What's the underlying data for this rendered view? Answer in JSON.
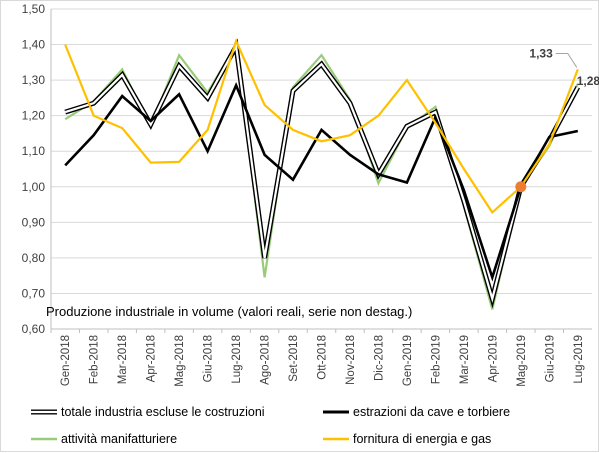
{
  "chart_data": {
    "type": "line",
    "title": "Produzione  industriale in volume (valori reali, serie non destag.)",
    "categories": [
      "Gen-2018",
      "Feb-2018",
      "Mar-2018",
      "Apr-2018",
      "Mag-2018",
      "Giu-2018",
      "Lug-2018",
      "Ago-2018",
      "Set-2018",
      "Ott-2018",
      "Nov-2018",
      "Dic-2018",
      "Gen-2019",
      "Feb-2019",
      "Mar-2019",
      "Apr-2019",
      "Mag-2019",
      "Giu-2019",
      "Lug-2019"
    ],
    "ylim": [
      0.6,
      1.5
    ],
    "yticks": [
      "0,60",
      "0,70",
      "0,80",
      "0,90",
      "1,00",
      "1,10",
      "1,20",
      "1,30",
      "1,40",
      "1,50"
    ],
    "grid": true,
    "legend_position": "bottom",
    "series": [
      {
        "name": "totale industria escluse le costruzioni",
        "color": "#000000",
        "style": "hollow",
        "values": [
          1.21,
          1.235,
          1.315,
          1.175,
          1.34,
          1.25,
          1.395,
          0.8,
          1.27,
          1.345,
          1.235,
          1.035,
          1.17,
          1.21,
          0.96,
          0.685,
          1.0,
          1.13,
          1.28
        ]
      },
      {
        "name": "estrazioni da cave e torbiere",
        "color": "#000000",
        "style": "solid",
        "values": [
          1.06,
          1.145,
          1.255,
          1.185,
          1.26,
          1.1,
          1.285,
          1.09,
          1.02,
          1.16,
          1.09,
          1.035,
          1.012,
          1.195,
          0.99,
          0.745,
          1.0,
          1.14,
          1.157
        ]
      },
      {
        "name": "attività manifatturiere",
        "color": "#99cc7a",
        "style": "solid",
        "values": [
          1.19,
          1.24,
          1.33,
          1.17,
          1.37,
          1.265,
          1.4,
          0.745,
          1.28,
          1.37,
          1.245,
          1.01,
          1.165,
          1.225,
          0.945,
          0.655,
          1.0,
          1.115,
          1.29
        ]
      },
      {
        "name": "fornitura di energia e gas",
        "color": "#ffc000",
        "style": "solid",
        "values": [
          1.4,
          1.2,
          1.165,
          1.068,
          1.07,
          1.16,
          1.41,
          1.23,
          1.16,
          1.128,
          1.145,
          1.2,
          1.3,
          1.18,
          1.05,
          0.928,
          1.0,
          1.12,
          1.33
        ]
      }
    ],
    "annotations": [
      {
        "label": "1,33",
        "x": "Lug-2019",
        "series": "fornitura di energia e gas"
      },
      {
        "label": "1,28",
        "x": "Lug-2019",
        "series": "totale industria escluse le costruzioni"
      }
    ],
    "marker": {
      "x": "Mag-2019",
      "y": 1.0,
      "color": "#ed7d31"
    }
  }
}
